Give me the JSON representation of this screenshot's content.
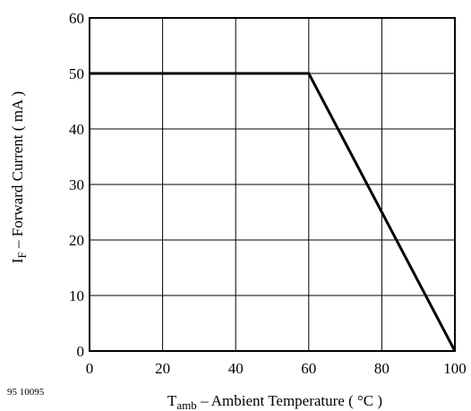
{
  "chart_data": {
    "type": "line",
    "title": "",
    "xlabel": {
      "prefix": "T",
      "subscript": "amb",
      "suffix": " – Ambient Temperature ( °C )"
    },
    "ylabel": {
      "prefix": "I",
      "subscript": "F",
      "suffix": " – Forward Current ( mA )"
    },
    "xlim": [
      0,
      100
    ],
    "ylim": [
      0,
      60
    ],
    "xticks": [
      "0",
      "20",
      "40",
      "60",
      "80",
      "100"
    ],
    "yticks": [
      "0",
      "10",
      "20",
      "30",
      "40",
      "50",
      "60"
    ],
    "grid": true,
    "series": [
      {
        "x": [
          0,
          60,
          100
        ],
        "y": [
          50,
          50,
          0
        ]
      }
    ],
    "line_color": "#000000",
    "grid_color": "#000000"
  },
  "document_code": "95 10095"
}
